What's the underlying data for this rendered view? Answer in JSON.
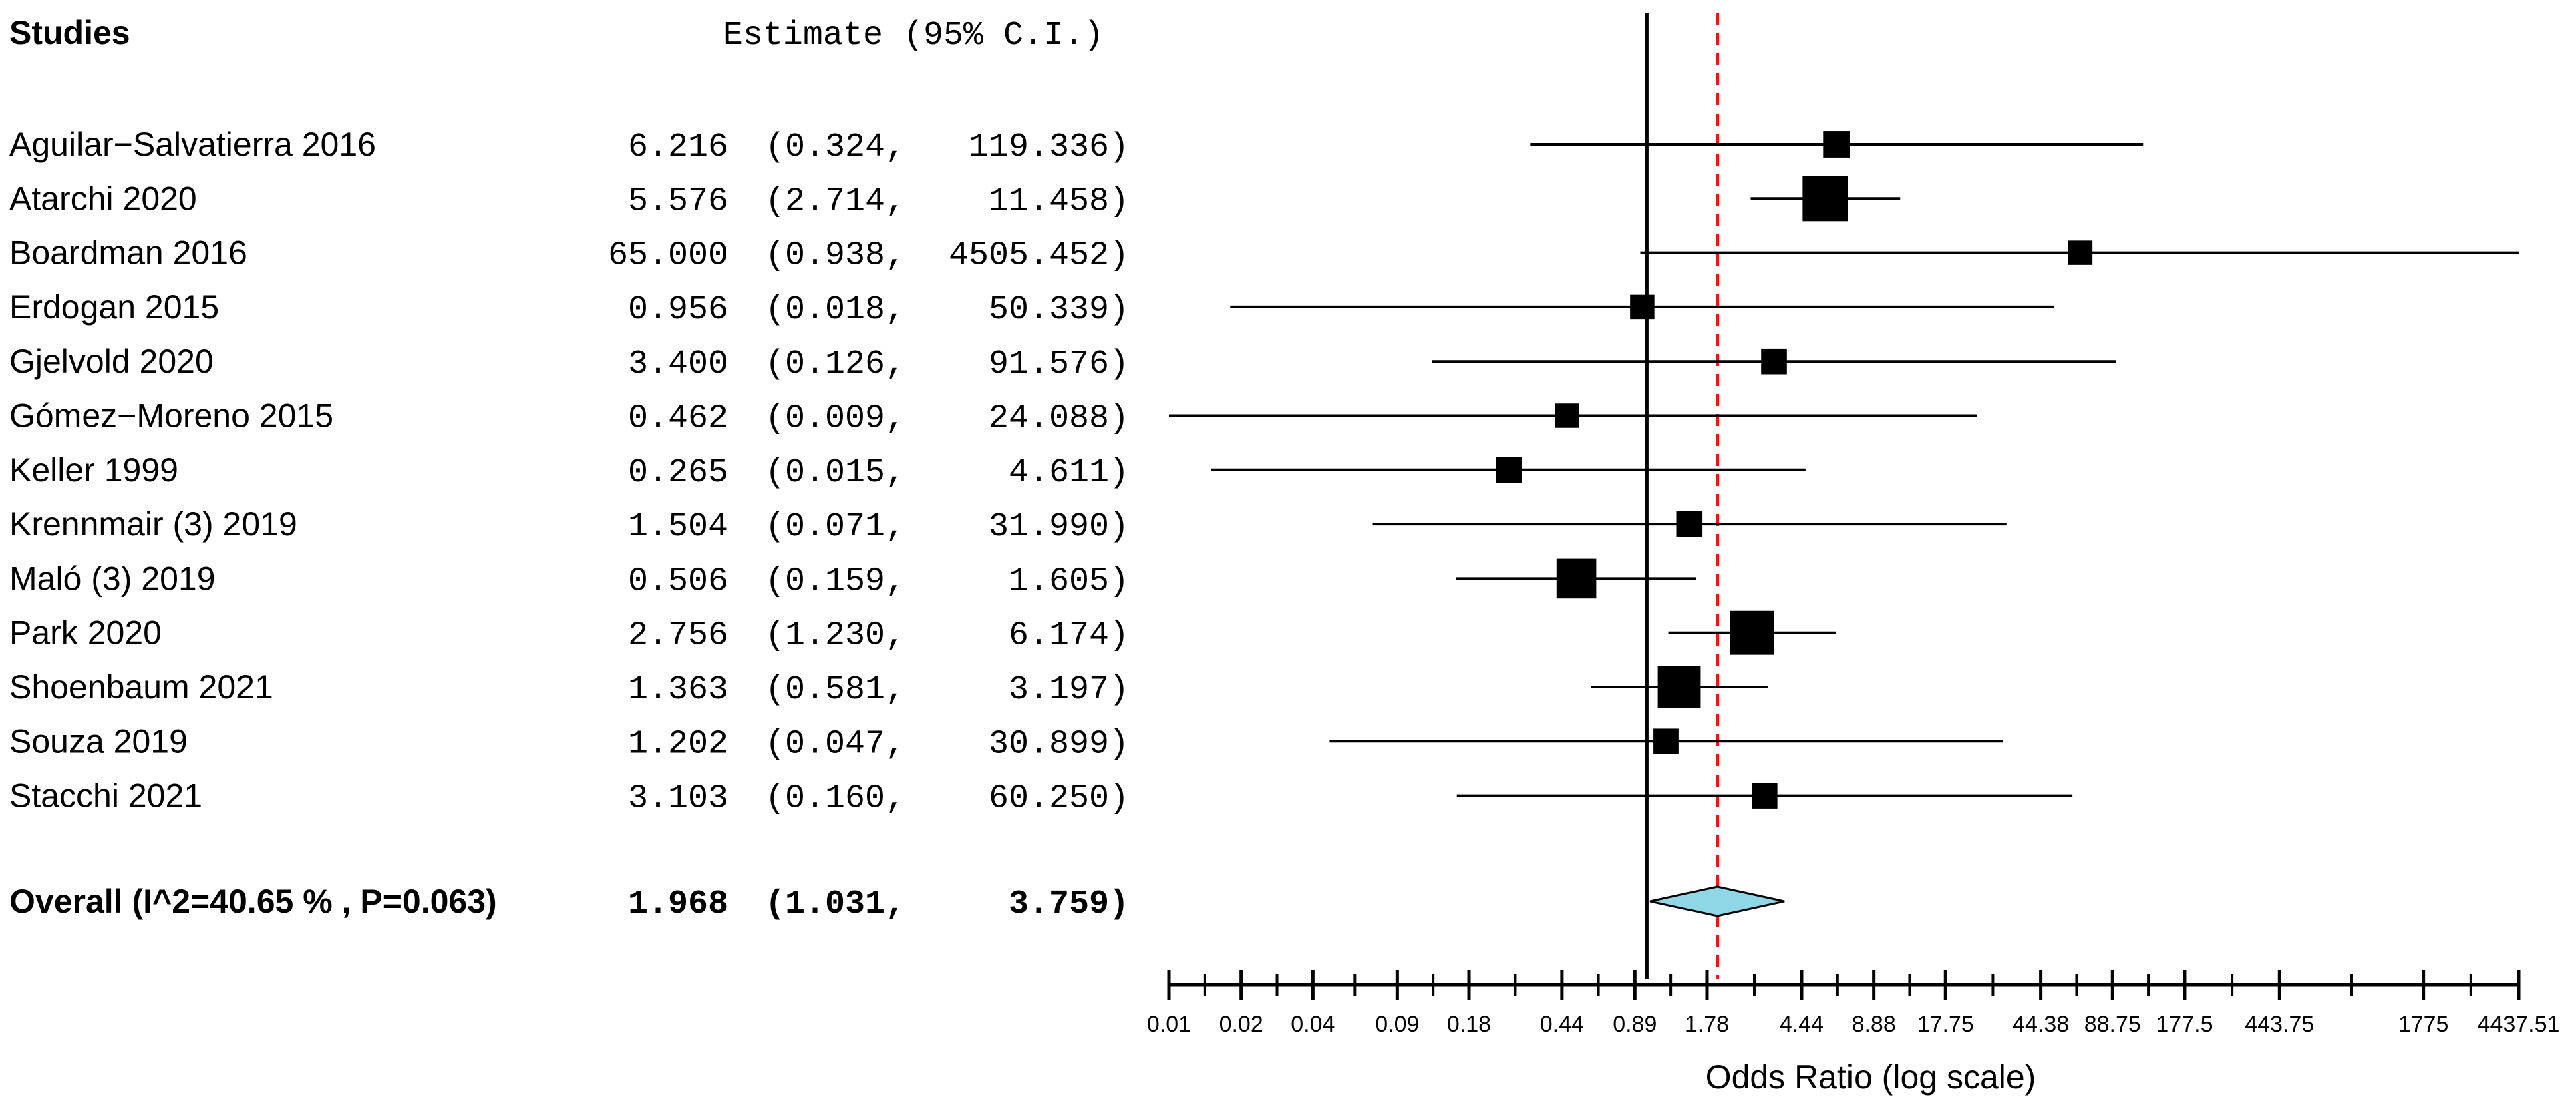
{
  "chart_data": {
    "type": "forest",
    "header": {
      "studies_label": "Studies",
      "estimate_label": "Estimate (95% C.I.)"
    },
    "scale": "log",
    "xlabel": "Odds Ratio (log scale)",
    "xlim": [
      0.01,
      4437.51
    ],
    "x_ticks": [
      {
        "value": 0.01,
        "label": "0.01"
      },
      {
        "value": 0.02,
        "label": "0.02"
      },
      {
        "value": 0.04,
        "label": "0.04"
      },
      {
        "value": 0.09,
        "label": "0.09"
      },
      {
        "value": 0.18,
        "label": "0.18"
      },
      {
        "value": 0.44,
        "label": "0.44"
      },
      {
        "value": 0.89,
        "label": "0.89"
      },
      {
        "value": 1.78,
        "label": "1.78"
      },
      {
        "value": 4.44,
        "label": "4.44"
      },
      {
        "value": 8.88,
        "label": "8.88"
      },
      {
        "value": 17.75,
        "label": "17.75"
      },
      {
        "value": 44.38,
        "label": "44.38"
      },
      {
        "value": 88.75,
        "label": "88.75"
      },
      {
        "value": 177.5,
        "label": "177.5"
      },
      {
        "value": 443.75,
        "label": "443.75"
      },
      {
        "value": 1775,
        "label": "1775"
      },
      {
        "value": 4437.51,
        "label": "4437.51"
      }
    ],
    "null_line_value": 1,
    "pooled_line_value": 1.968,
    "studies": [
      {
        "name": "Aguilar−Salvatierra 2016",
        "estimate": 6.216,
        "lower": 0.324,
        "upper": 119.336,
        "est_text": "6.216",
        "lower_text": "(0.324,",
        "upper_text": "119.336)",
        "weight": 0.33
      },
      {
        "name": "Atarchi 2020",
        "estimate": 5.576,
        "lower": 2.714,
        "upper": 11.458,
        "est_text": "5.576",
        "lower_text": "(2.714,",
        "upper_text": "11.458)",
        "weight": 1.0
      },
      {
        "name": "Boardman 2016",
        "estimate": 65.0,
        "lower": 0.938,
        "upper": 4505.452,
        "est_text": "65.000",
        "lower_text": "(0.938,",
        "upper_text": "4505.452)",
        "weight": 0.25
      },
      {
        "name": "Erdogan 2015",
        "estimate": 0.956,
        "lower": 0.018,
        "upper": 50.339,
        "est_text": "0.956",
        "lower_text": "(0.018,",
        "upper_text": "50.339)",
        "weight": 0.25
      },
      {
        "name": "Gjelvold 2020",
        "estimate": 3.4,
        "lower": 0.126,
        "upper": 91.576,
        "est_text": "3.400",
        "lower_text": "(0.126,",
        "upper_text": "91.576)",
        "weight": 0.3
      },
      {
        "name": "Gómez−Moreno 2015",
        "estimate": 0.462,
        "lower": 0.009,
        "upper": 24.088,
        "est_text": "0.462",
        "lower_text": "(0.009,",
        "upper_text": "24.088)",
        "weight": 0.25
      },
      {
        "name": "Keller 1999",
        "estimate": 0.265,
        "lower": 0.015,
        "upper": 4.611,
        "est_text": "0.265",
        "lower_text": "(0.015,",
        "upper_text": "4.611)",
        "weight": 0.3
      },
      {
        "name": "Krennmair (3) 2019",
        "estimate": 1.504,
        "lower": 0.071,
        "upper": 31.99,
        "est_text": "1.504",
        "lower_text": "(0.071,",
        "upper_text": "31.990)",
        "weight": 0.3
      },
      {
        "name": "Maló (3) 2019",
        "estimate": 0.506,
        "lower": 0.159,
        "upper": 1.605,
        "est_text": "0.506",
        "lower_text": "(0.159,",
        "upper_text": "1.605)",
        "weight": 0.8
      },
      {
        "name": "Park 2020",
        "estimate": 2.756,
        "lower": 1.23,
        "upper": 6.174,
        "est_text": "2.756",
        "lower_text": "(1.230,",
        "upper_text": "6.174)",
        "weight": 0.95
      },
      {
        "name": "Shoenbaum 2021",
        "estimate": 1.363,
        "lower": 0.581,
        "upper": 3.197,
        "est_text": "1.363",
        "lower_text": "(0.581,",
        "upper_text": "3.197)",
        "weight": 0.9
      },
      {
        "name": "Souza 2019",
        "estimate": 1.202,
        "lower": 0.047,
        "upper": 30.899,
        "est_text": "1.202",
        "lower_text": "(0.047,",
        "upper_text": "30.899)",
        "weight": 0.28
      },
      {
        "name": "Stacchi 2021",
        "estimate": 3.103,
        "lower": 0.16,
        "upper": 60.25,
        "est_text": "3.103",
        "lower_text": "(0.160,",
        "upper_text": "60.250)",
        "weight": 0.3
      }
    ],
    "overall": {
      "label": "Overall (I^2=40.65 % , P=0.063)",
      "estimate": 1.968,
      "lower": 1.031,
      "upper": 3.759,
      "est_text": "1.968",
      "lower_text": "(1.031,",
      "upper_text": "3.759)"
    },
    "colors": {
      "marker": "#000000",
      "ci_line": "#000000",
      "null_line": "#000000",
      "pooled_line": "#e31a1c",
      "diamond_fill": "#8fd6e6",
      "diamond_stroke": "#000000"
    }
  }
}
